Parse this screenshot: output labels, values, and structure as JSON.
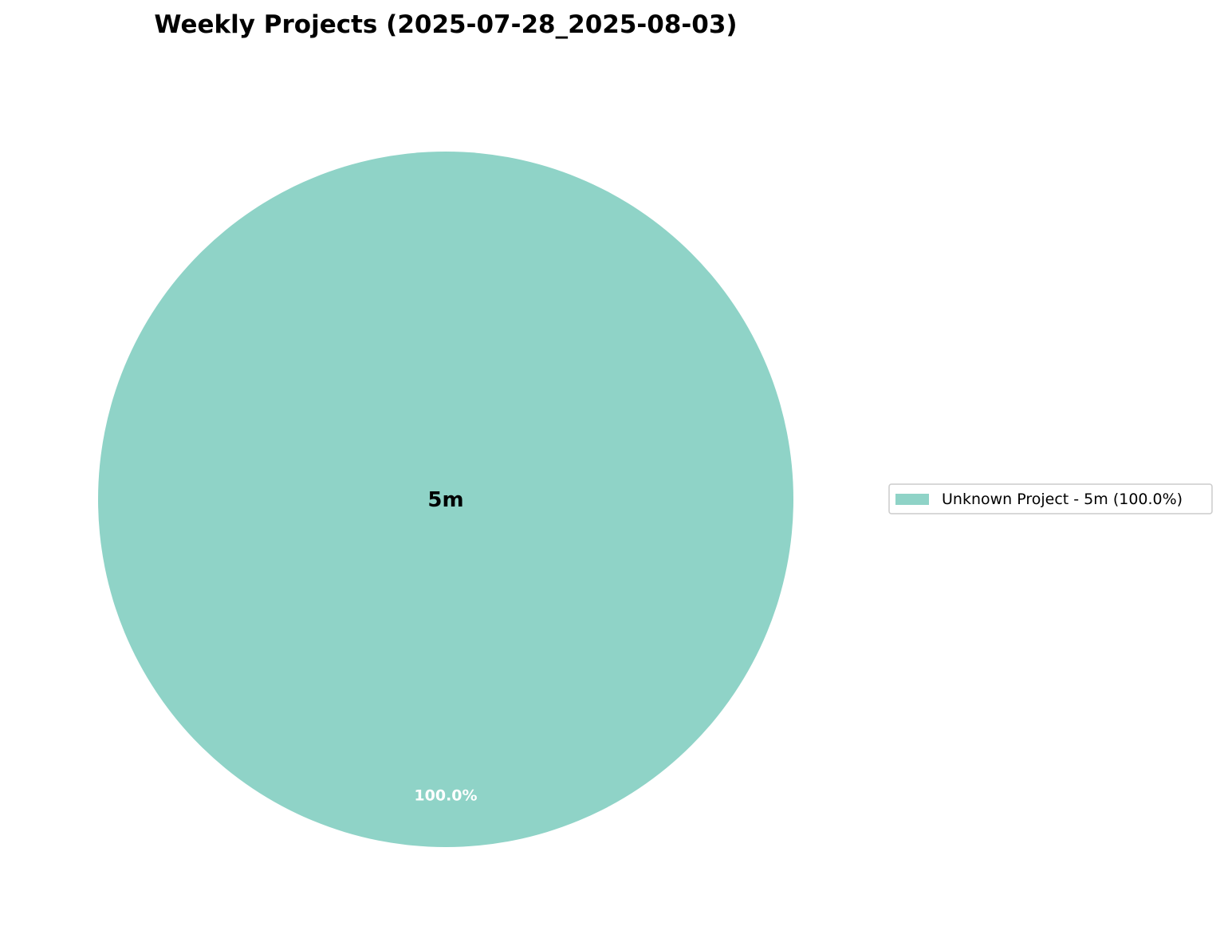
{
  "chart_data": {
    "type": "pie",
    "title": "Weekly Projects (2025-07-28_2025-08-03)",
    "center_label": "5m",
    "slices": [
      {
        "label": "Unknown Project",
        "value_label": "5m",
        "value": 5,
        "percent": 100.0,
        "percent_label": "100.0%",
        "legend_label": "Unknown Project - 5m (100.0%)",
        "color": "#8fd3c7"
      }
    ],
    "legend_placement": "right"
  }
}
